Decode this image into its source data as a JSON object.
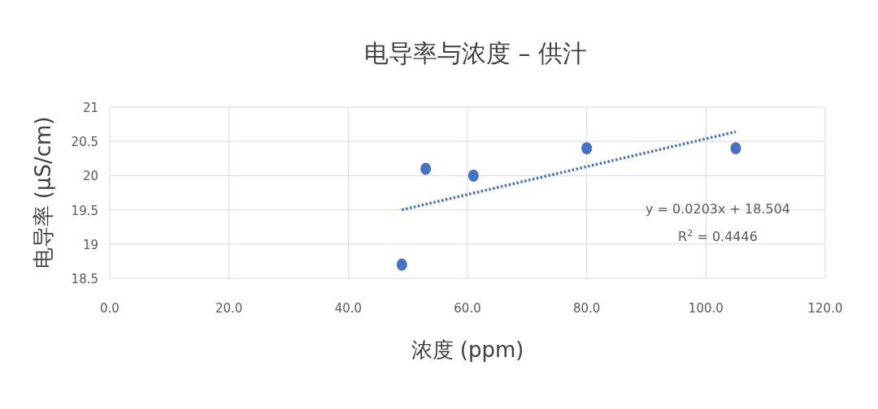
{
  "chart_data": {
    "type": "scatter",
    "title": "电导率与浓度 – 供汁",
    "xlabel": "浓度 (ppm)",
    "ylabel": "电导率 (μS/cm)",
    "xlim": [
      0,
      120
    ],
    "xticks": [
      {
        "value": 0,
        "label": "0.0"
      },
      {
        "value": 20,
        "label": "20.0"
      },
      {
        "value": 40,
        "label": "40.0"
      },
      {
        "value": 60,
        "label": "60.0"
      },
      {
        "value": 80,
        "label": "80.0"
      },
      {
        "value": 100,
        "label": "100.0"
      },
      {
        "value": 120,
        "label": "120.0"
      }
    ],
    "ylim": [
      18.5,
      21
    ],
    "yticks": [
      18.5,
      19,
      19.5,
      20,
      20.5,
      21
    ],
    "grid": true,
    "marker": "circle",
    "series": [
      {
        "type": "scatter",
        "color": "#4472c4",
        "x": [
          49,
          53,
          61,
          80,
          105
        ],
        "values": [
          18.7,
          20.1,
          20.0,
          20.4,
          20.4
        ]
      },
      {
        "type": "line",
        "color": "#4472c4",
        "line_style": "dotted",
        "marker": "none",
        "x": [
          49,
          105
        ],
        "values": [
          19.5,
          20.64
        ]
      }
    ],
    "annotations": [
      "y = 0.0203x + 18.504",
      "R$^{2}$ = 0.4446"
    ]
  }
}
